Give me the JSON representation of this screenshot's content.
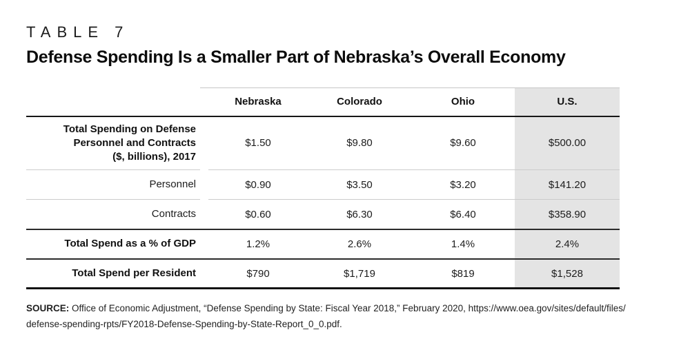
{
  "page": {
    "eyebrow": "TABLE 7",
    "title": "Defense Spending Is a Smaller Part of Nebraska’s Overall Economy"
  },
  "table": {
    "columns": [
      "Nebraska",
      "Colorado",
      "Ohio",
      "U.S."
    ],
    "highlight_column": "U.S.",
    "rows": [
      {
        "label_lines": [
          "Total Spending on Defense",
          "Personnel and Contracts",
          "($, billions), 2017"
        ],
        "bold": true,
        "tall": true,
        "rule_below": "light",
        "values": [
          "$1.50",
          "$9.80",
          "$9.60",
          "$500.00"
        ]
      },
      {
        "label_lines": [
          "Personnel"
        ],
        "bold": false,
        "tall": false,
        "rule_below": "light",
        "values": [
          "$0.90",
          "$3.50",
          "$3.20",
          "$141.20"
        ]
      },
      {
        "label_lines": [
          "Contracts"
        ],
        "bold": false,
        "tall": false,
        "rule_below": "dark",
        "values": [
          "$0.60",
          "$6.30",
          "$6.40",
          "$358.90"
        ]
      },
      {
        "label_lines": [
          "Total Spend as a % of GDP"
        ],
        "bold": true,
        "tall": false,
        "rule_below": "dark",
        "values": [
          "1.2%",
          "2.6%",
          "1.4%",
          "2.4%"
        ]
      },
      {
        "label_lines": [
          "Total Spend per Resident"
        ],
        "bold": true,
        "tall": false,
        "rule_below": "heavy",
        "values": [
          "$790",
          "$1,719",
          "$819",
          "$1,528"
        ]
      }
    ]
  },
  "source": {
    "label": "SOURCE:",
    "lines": [
      "Office of Economic Adjustment, “Defense Spending by State: Fiscal Year 2018,” February 2020, https://www.oea.gov/sites/default/files/",
      "defense-spending-rpts/FY2018-Defense-Spending-by-State-Report_0_0.pdf."
    ]
  },
  "colors": {
    "highlight_bg": "#e4e4e4",
    "rule_dark": "#161616",
    "rule_light": "#cbcbcb",
    "text": "#1a1a1a"
  },
  "chart_data": {
    "type": "table",
    "title": "Defense Spending Is a Smaller Part of Nebraska’s Overall Economy",
    "table_number": "TABLE 7",
    "columns": [
      "",
      "Nebraska",
      "Colorado",
      "Ohio",
      "U.S."
    ],
    "rows": [
      [
        "Total Spending on Defense Personnel and Contracts ($, billions), 2017",
        "$1.50",
        "$9.80",
        "$9.60",
        "$500.00"
      ],
      [
        "Personnel",
        "$0.90",
        "$3.50",
        "$3.20",
        "$141.20"
      ],
      [
        "Contracts",
        "$0.60",
        "$6.30",
        "$6.40",
        "$358.90"
      ],
      [
        "Total Spend as a % of GDP",
        "1.2%",
        "2.6%",
        "1.4%",
        "2.4%"
      ],
      [
        "Total Spend per Resident",
        "$790",
        "$1,719",
        "$819",
        "$1,528"
      ]
    ],
    "highlight_column": "U.S.",
    "source": "Office of Economic Adjustment, “Defense Spending by State: Fiscal Year 2018,” February 2020, https://www.oea.gov/sites/default/files/defense-spending-rpts/FY2018-Defense-Spending-by-State-Report_0_0.pdf."
  }
}
